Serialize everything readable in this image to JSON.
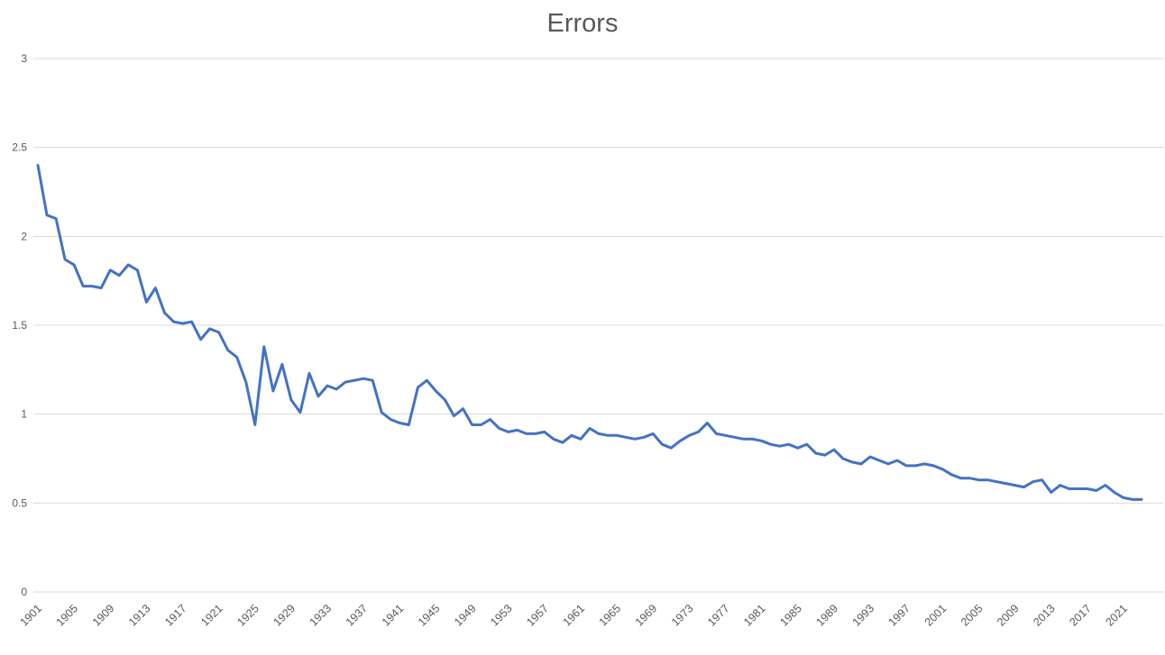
{
  "title": "Errors",
  "chart_data": {
    "type": "line",
    "title": "Errors",
    "legend": "none",
    "grid": "horizontal",
    "x_first": 1901,
    "x_last": 2023,
    "x": [
      1901,
      1902,
      1903,
      1904,
      1905,
      1906,
      1907,
      1908,
      1909,
      1910,
      1911,
      1912,
      1913,
      1914,
      1915,
      1916,
      1917,
      1918,
      1919,
      1920,
      1921,
      1922,
      1923,
      1924,
      1925,
      1926,
      1927,
      1928,
      1929,
      1930,
      1931,
      1932,
      1933,
      1934,
      1935,
      1936,
      1937,
      1938,
      1939,
      1940,
      1941,
      1942,
      1943,
      1944,
      1945,
      1946,
      1947,
      1948,
      1949,
      1950,
      1951,
      1952,
      1953,
      1954,
      1955,
      1956,
      1957,
      1958,
      1959,
      1960,
      1961,
      1962,
      1963,
      1964,
      1965,
      1966,
      1967,
      1968,
      1969,
      1970,
      1971,
      1972,
      1973,
      1974,
      1975,
      1976,
      1977,
      1978,
      1979,
      1980,
      1981,
      1982,
      1983,
      1984,
      1985,
      1986,
      1987,
      1988,
      1989,
      1990,
      1991,
      1992,
      1993,
      1994,
      1995,
      1996,
      1997,
      1998,
      1999,
      2000,
      2001,
      2002,
      2003,
      2004,
      2005,
      2006,
      2007,
      2008,
      2009,
      2010,
      2011,
      2012,
      2013,
      2014,
      2015,
      2016,
      2017,
      2018,
      2019,
      2020,
      2021,
      2022,
      2023
    ],
    "series": [
      {
        "name": "Errors",
        "values": [
          2.4,
          2.12,
          2.1,
          1.87,
          1.84,
          1.72,
          1.72,
          1.71,
          1.81,
          1.78,
          1.84,
          1.81,
          1.63,
          1.71,
          1.57,
          1.52,
          1.51,
          1.52,
          1.42,
          1.48,
          1.46,
          1.36,
          1.32,
          1.18,
          0.94,
          1.38,
          1.13,
          1.28,
          1.08,
          1.01,
          1.23,
          1.1,
          1.16,
          1.14,
          1.18,
          1.19,
          1.2,
          1.19,
          1.01,
          0.97,
          0.95,
          0.94,
          1.15,
          1.19,
          1.13,
          1.08,
          0.99,
          1.03,
          0.94,
          0.94,
          0.97,
          0.92,
          0.9,
          0.91,
          0.89,
          0.89,
          0.9,
          0.86,
          0.84,
          0.88,
          0.86,
          0.92,
          0.89,
          0.88,
          0.88,
          0.87,
          0.86,
          0.87,
          0.89,
          0.83,
          0.81,
          0.85,
          0.88,
          0.9,
          0.95,
          0.89,
          0.88,
          0.87,
          0.86,
          0.86,
          0.85,
          0.83,
          0.82,
          0.83,
          0.81,
          0.83,
          0.78,
          0.77,
          0.8,
          0.75,
          0.73,
          0.72,
          0.76,
          0.74,
          0.72,
          0.74,
          0.71,
          0.71,
          0.72,
          0.71,
          0.69,
          0.66,
          0.64,
          0.64,
          0.63,
          0.63,
          0.62,
          0.61,
          0.6,
          0.59,
          0.62,
          0.63,
          0.56,
          0.6,
          0.58,
          0.58,
          0.58,
          0.57,
          0.6,
          0.56,
          0.53,
          0.52,
          0.52
        ]
      }
    ],
    "ylim": [
      0,
      3
    ],
    "ytick_step": 0.5,
    "ytick_labels": [
      "0",
      "0.5",
      "1",
      "1.5",
      "2",
      "2.5",
      "3"
    ],
    "xtick_step": 4,
    "xtick_labels": [
      "1901",
      "1905",
      "1909",
      "1913",
      "1917",
      "1921",
      "1925",
      "1929",
      "1933",
      "1937",
      "1941",
      "1945",
      "1949",
      "1953",
      "1957",
      "1961",
      "1965",
      "1969",
      "1973",
      "1977",
      "1981",
      "1985",
      "1989",
      "1993",
      "1997",
      "2001",
      "2005",
      "2009",
      "2013",
      "2017",
      "2021"
    ],
    "line_color": "#4472C4",
    "gridline_color": "#D9D9D9",
    "label_color": "#595959",
    "title_color": "#595959",
    "background": "#FFFFFF"
  }
}
